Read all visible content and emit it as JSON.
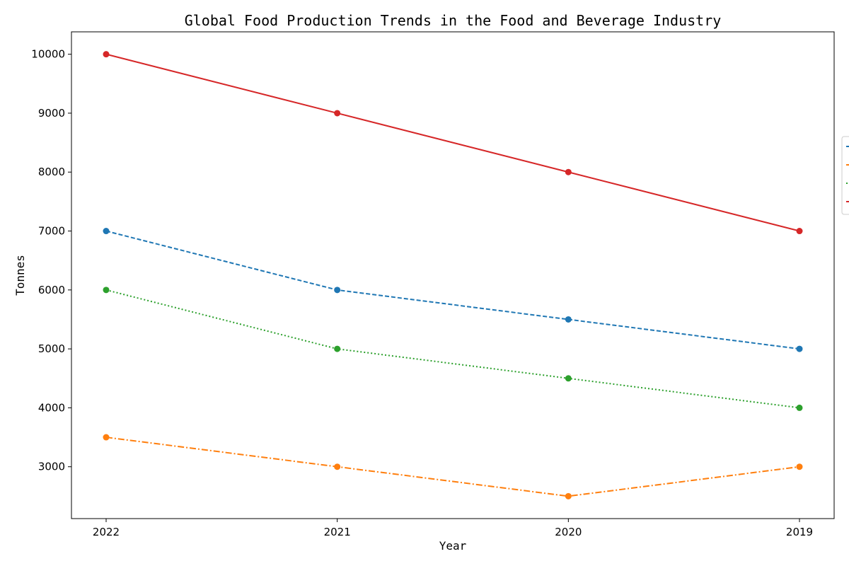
{
  "chart_data": {
    "type": "line",
    "title": "Global Food Production Trends in the Food and Beverage Industry",
    "xlabel": "Year",
    "ylabel": "Tonnes",
    "categories": [
      "2022",
      "2021",
      "2020",
      "2019"
    ],
    "yticks": [
      3000,
      4000,
      5000,
      6000,
      7000,
      8000,
      9000,
      10000
    ],
    "ylim": [
      2120,
      10380
    ],
    "grid": false,
    "legend_position": "right",
    "series": [
      {
        "name": "",
        "values": [
          7000,
          6000,
          5500,
          5000
        ],
        "color": "#1f77b4",
        "linestyle": "dashed"
      },
      {
        "name": "",
        "values": [
          3500,
          3000,
          2500,
          3000
        ],
        "color": "#ff7f0e",
        "linestyle": "dashdot"
      },
      {
        "name": "",
        "values": [
          6000,
          5000,
          4500,
          4000
        ],
        "color": "#2ca02c",
        "linestyle": "dotted"
      },
      {
        "name": "",
        "values": [
          10000,
          9000,
          8000,
          7000
        ],
        "color": "#d62728",
        "linestyle": "solid"
      }
    ]
  }
}
